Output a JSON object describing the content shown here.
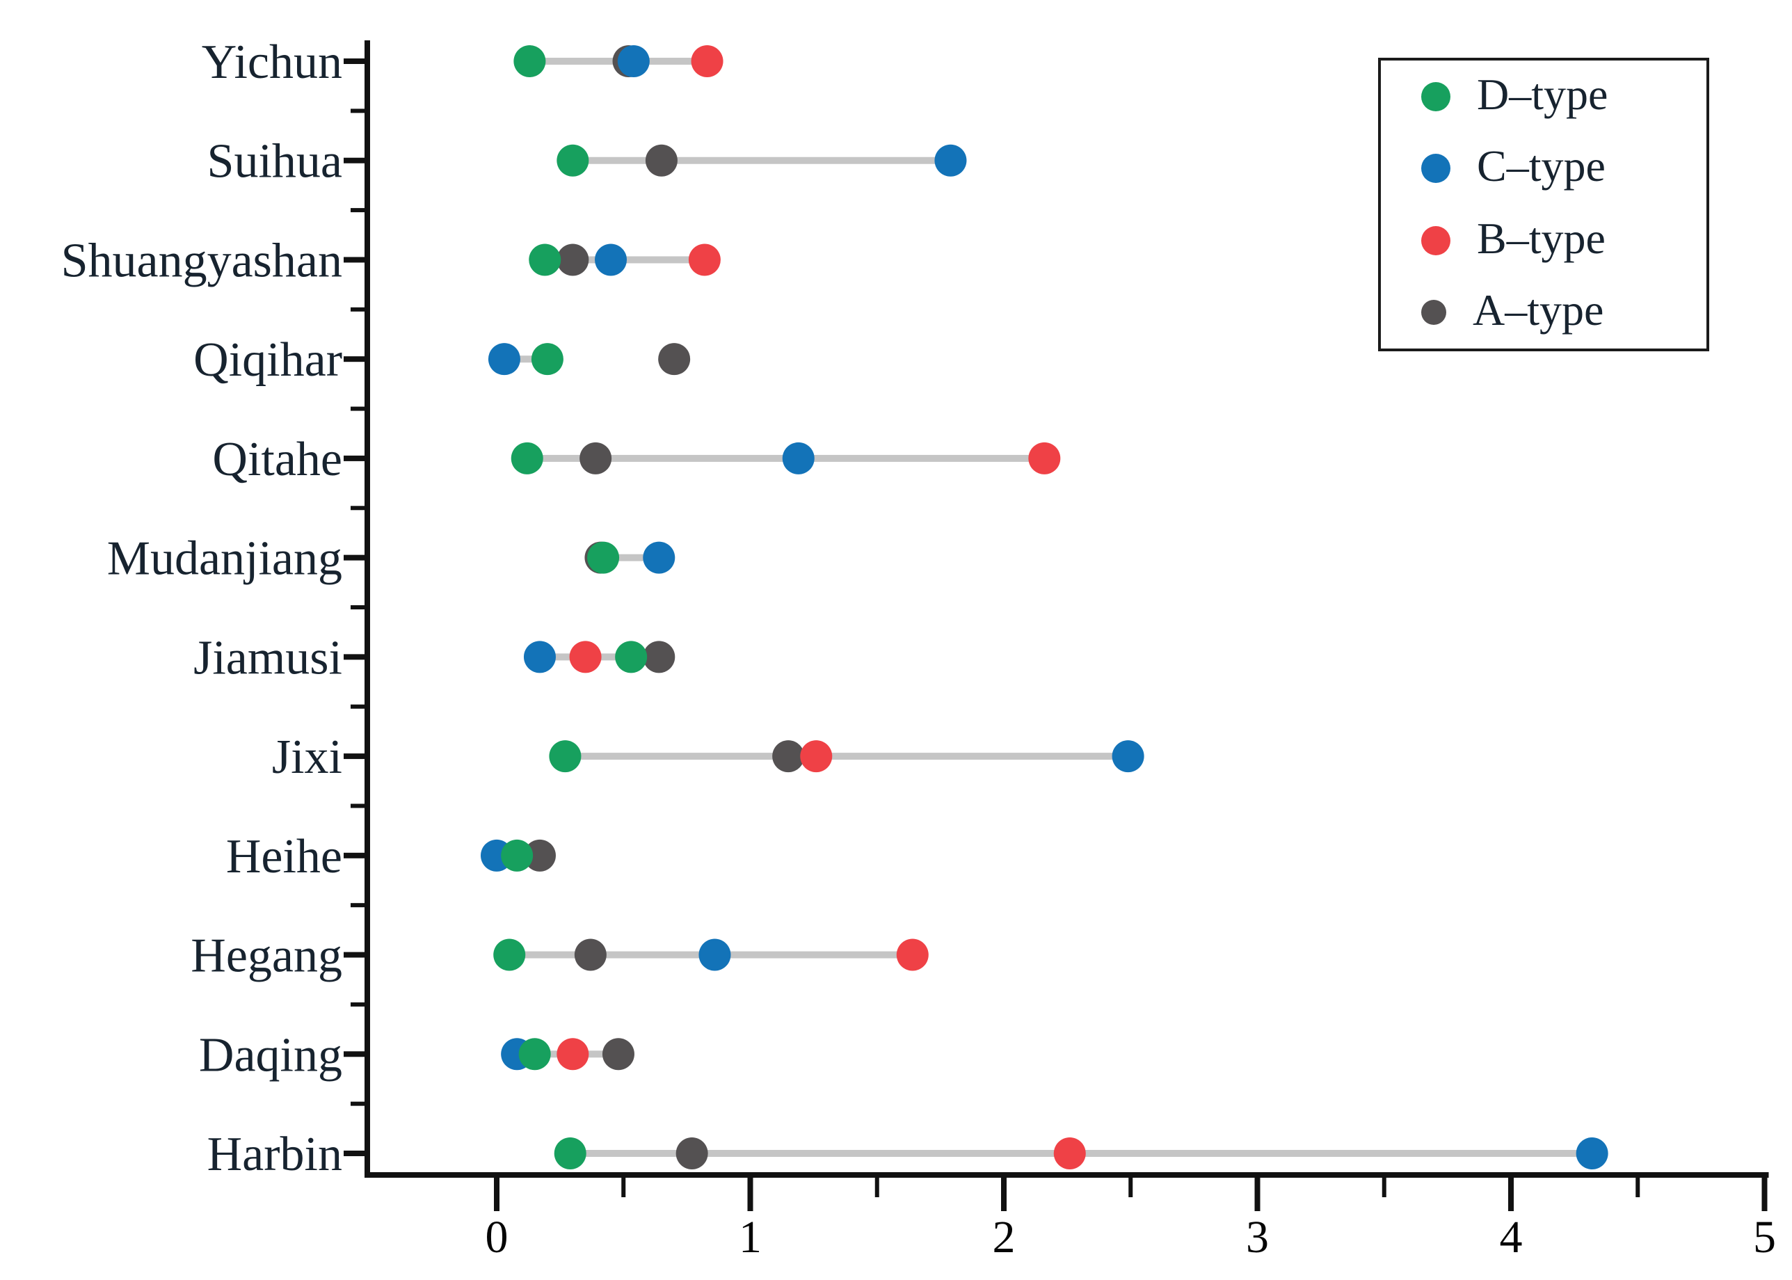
{
  "chart_data": {
    "type": "scatter",
    "subtype": "dumbbell-dot-plot",
    "title": "",
    "xlabel": "",
    "ylabel": "",
    "x_axis": {
      "min": 0,
      "max": 5,
      "major_ticks": [
        0,
        1,
        2,
        3,
        4,
        5
      ],
      "minor_tick_interval": 0.5,
      "grid": false
    },
    "legend_position": "top-right",
    "legend": [
      {
        "label": "D–type",
        "series_key": "D",
        "color": "#17A05E",
        "marker_size": 42
      },
      {
        "label": "C–type",
        "series_key": "C",
        "color": "#1373B8",
        "marker_size": 42
      },
      {
        "label": "B–type",
        "series_key": "B",
        "color": "#EF4146",
        "marker_size": 42
      },
      {
        "label": "A–type",
        "series_key": "A",
        "color": "#545152",
        "marker_size": 36
      }
    ],
    "draw_order": [
      "A",
      "B",
      "C",
      "D"
    ],
    "connector_color": "#c5c5c5",
    "rows": [
      {
        "city": "Yichun",
        "points": {
          "D": 0.13,
          "A": 0.52,
          "C": 0.54,
          "B": 0.83
        },
        "line": [
          0.13,
          0.83
        ]
      },
      {
        "city": "Suihua",
        "points": {
          "D": 0.3,
          "A": 0.65,
          "C": 1.79
        },
        "line": [
          0.3,
          1.79
        ]
      },
      {
        "city": "Shuangyashan",
        "points": {
          "D": 0.19,
          "A": 0.3,
          "C": 0.45,
          "B": 0.82
        },
        "line": [
          0.19,
          0.82
        ]
      },
      {
        "city": "Qiqihar",
        "points": {
          "C": 0.03,
          "D": 0.2,
          "A": 0.7
        },
        "line": [
          0.03,
          0.2
        ]
      },
      {
        "city": "Qitahe",
        "points": {
          "D": 0.12,
          "A": 0.39,
          "C": 1.19,
          "B": 2.16
        },
        "line": [
          0.12,
          2.16
        ]
      },
      {
        "city": "Mudanjiang",
        "points": {
          "A": 0.41,
          "D": 0.42,
          "C": 0.64
        },
        "line": [
          0.42,
          0.64
        ]
      },
      {
        "city": "Jiamusi",
        "points": {
          "C": 0.17,
          "B": 0.35,
          "D": 0.53,
          "A": 0.64
        },
        "line": [
          0.17,
          0.53
        ]
      },
      {
        "city": "Jixi",
        "points": {
          "D": 0.27,
          "A": 1.15,
          "B": 1.26,
          "C": 2.49
        },
        "line": [
          0.27,
          2.49
        ]
      },
      {
        "city": "Heihe",
        "points": {
          "C": 0.0,
          "D": 0.08,
          "A": 0.17
        },
        "line": [
          0.0,
          0.08
        ]
      },
      {
        "city": "Hegang",
        "points": {
          "D": 0.05,
          "A": 0.37,
          "C": 0.86,
          "B": 1.64
        },
        "line": [
          0.05,
          1.64
        ]
      },
      {
        "city": "Daqing",
        "points": {
          "C": 0.08,
          "D": 0.15,
          "B": 0.3,
          "A": 0.48
        },
        "line": [
          0.08,
          0.48
        ]
      },
      {
        "city": "Harbin",
        "points": {
          "D": 0.29,
          "A": 0.77,
          "B": 2.26,
          "C": 4.32
        },
        "line": [
          0.29,
          4.32
        ]
      }
    ]
  }
}
